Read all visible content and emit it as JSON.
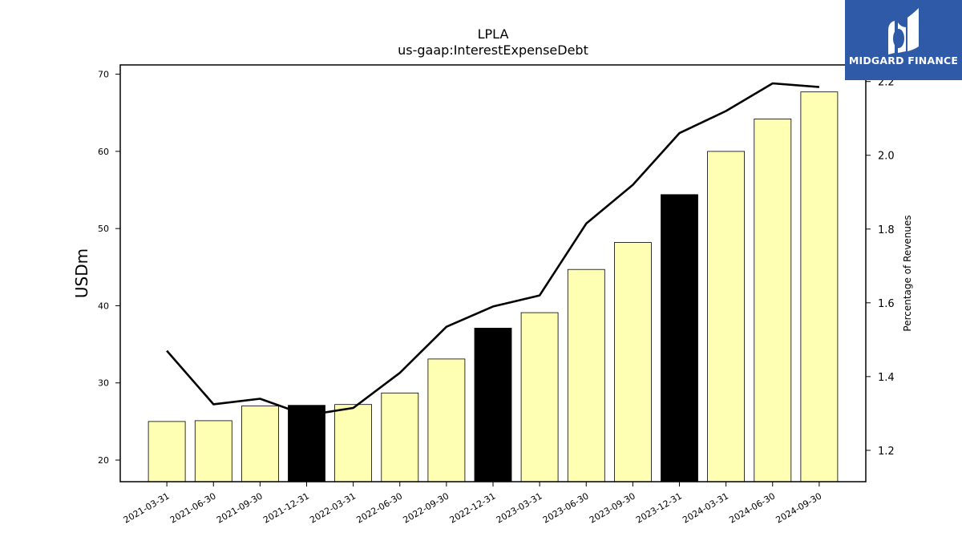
{
  "chart_data": {
    "type": "bar",
    "title": "LPLA",
    "subtitle": "us-gaap:InterestExpenseDebt",
    "ylabel": "USDm",
    "y2label": "Percentage of Revenues",
    "categories": [
      "2021-03-31",
      "2021-06-30",
      "2021-09-30",
      "2021-12-31",
      "2022-03-31",
      "2022-06-30",
      "2022-09-30",
      "2022-12-31",
      "2023-03-31",
      "2023-06-30",
      "2023-09-30",
      "2023-12-31",
      "2024-03-31",
      "2024-06-30",
      "2024-09-30"
    ],
    "series": [
      {
        "type": "bar",
        "axis": "left",
        "values": [
          25.0,
          25.1,
          27.0,
          27.1,
          27.2,
          28.7,
          33.1,
          37.1,
          39.1,
          44.7,
          48.2,
          54.4,
          60.0,
          64.2,
          67.7
        ],
        "bar_colors": [
          "#ffffb3",
          "#ffffb3",
          "#ffffb3",
          "#000000",
          "#ffffb3",
          "#ffffb3",
          "#ffffb3",
          "#000000",
          "#ffffb3",
          "#ffffb3",
          "#ffffb3",
          "#000000",
          "#ffffb3",
          "#ffffb3",
          "#ffffb3"
        ]
      },
      {
        "type": "line",
        "axis": "right",
        "color": "#000000",
        "values": [
          1.47,
          1.325,
          1.34,
          1.295,
          1.315,
          1.41,
          1.535,
          1.59,
          1.62,
          1.815,
          1.92,
          2.06,
          2.12,
          2.195,
          2.185
        ]
      }
    ],
    "ylim": [
      17.2,
      71.2
    ],
    "y2lim": [
      1.115,
      2.245
    ],
    "yticks": [
      20,
      30,
      40,
      50,
      60,
      70
    ],
    "y2ticks": [
      "1.2",
      "1.4",
      "1.6",
      "1.8",
      "2.0",
      "2.2"
    ],
    "grid": false,
    "legend": "none"
  },
  "watermark": {
    "text": "MIDGARD FINANCE",
    "background": "#2f5aa8"
  }
}
